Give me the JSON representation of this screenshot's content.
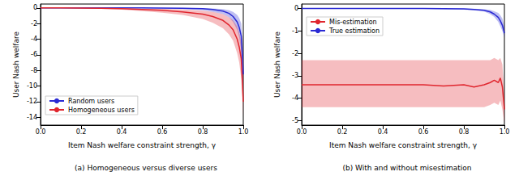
{
  "chart_data": [
    {
      "type": "line",
      "title": "(a) Homogeneous versus diverse users",
      "x_label": "Item Nash welfare constraint strength, γ",
      "y_label": "User Nash welfare",
      "x": [
        0,
        0.1,
        0.2,
        0.3,
        0.4,
        0.5,
        0.6,
        0.7,
        0.8,
        0.85,
        0.9,
        0.93,
        0.95,
        0.97,
        0.98,
        0.99,
        1.0
      ],
      "series": [
        {
          "name": "Random users",
          "color": "#2a2ad4",
          "values": [
            0,
            0,
            0,
            0,
            0,
            0,
            -0.02,
            -0.05,
            -0.1,
            -0.2,
            -0.4,
            -0.7,
            -1.1,
            -1.8,
            -2.5,
            -3.6,
            -8.5
          ],
          "lower": [
            0,
            0,
            0,
            0,
            -0.02,
            -0.05,
            -0.1,
            -0.15,
            -0.3,
            -0.5,
            -0.8,
            -1.2,
            -1.8,
            -2.8,
            -3.8,
            -5.5,
            -11
          ],
          "upper": [
            0,
            0,
            0,
            0,
            0,
            0,
            0,
            0,
            -0.03,
            -0.06,
            -0.15,
            -0.3,
            -0.5,
            -0.9,
            -1.3,
            -2.0,
            -6
          ]
        },
        {
          "name": "Homogeneous users",
          "color": "#e0262e",
          "values": [
            0,
            0,
            -0.02,
            -0.05,
            -0.1,
            -0.2,
            -0.3,
            -0.5,
            -0.8,
            -1.1,
            -1.6,
            -2.2,
            -2.8,
            -4.0,
            -5.0,
            -6.5,
            -12
          ],
          "lower": [
            0,
            -0.02,
            -0.06,
            -0.12,
            -0.22,
            -0.4,
            -0.6,
            -0.9,
            -1.4,
            -1.9,
            -2.6,
            -3.4,
            -4.2,
            -5.8,
            -7.0,
            -9.0,
            -14
          ],
          "upper": [
            0,
            0,
            0,
            -0.01,
            -0.03,
            -0.07,
            -0.12,
            -0.2,
            -0.35,
            -0.5,
            -0.8,
            -1.2,
            -1.6,
            -2.4,
            -3.2,
            -4.3,
            -9
          ]
        }
      ],
      "xlim": [
        0,
        1.0
      ],
      "xticks": [
        {
          "value": 0,
          "label": "0.0"
        },
        0.2,
        0.4,
        0.6,
        0.8,
        {
          "value": 1.0,
          "label": "1.0"
        }
      ],
      "ylim": [
        -15,
        0.5
      ],
      "yticks": [
        0,
        -2,
        -4,
        -6,
        -8,
        -10,
        -12,
        -14
      ],
      "legend": "lower left",
      "grid": false
    },
    {
      "type": "line",
      "title": "(b) With and without misestimation",
      "x_label": "Item Nash welfare constraint strength, γ",
      "y_label": "User Nash welfare",
      "x": [
        0,
        0.1,
        0.2,
        0.3,
        0.4,
        0.5,
        0.6,
        0.7,
        0.8,
        0.85,
        0.9,
        0.93,
        0.95,
        0.97,
        0.98,
        0.99,
        1.0
      ],
      "series": [
        {
          "name": "Mis-estimation",
          "color": "#e0262e",
          "values": [
            -3.4,
            -3.4,
            -3.4,
            -3.4,
            -3.4,
            -3.4,
            -3.4,
            -3.45,
            -3.4,
            -3.5,
            -3.4,
            -3.3,
            -3.2,
            -3.3,
            -3.1,
            -3.5,
            -4.5
          ],
          "lower": [
            -4.4,
            -4.4,
            -4.4,
            -4.4,
            -4.4,
            -4.4,
            -4.4,
            -4.4,
            -4.4,
            -4.4,
            -4.4,
            -4.3,
            -4.2,
            -4.3,
            -4.1,
            -4.5,
            -5.1
          ],
          "upper": [
            -2.3,
            -2.3,
            -2.3,
            -2.3,
            -2.3,
            -2.3,
            -2.3,
            -2.3,
            -2.3,
            -2.3,
            -2.3,
            -2.3,
            -2.2,
            -2.3,
            -2.2,
            -2.5,
            -3.9
          ]
        },
        {
          "name": "True estimation",
          "color": "#2a2ad4",
          "values": [
            0,
            0,
            0,
            0,
            0,
            0,
            0,
            -0.01,
            -0.02,
            -0.04,
            -0.08,
            -0.15,
            -0.25,
            -0.4,
            -0.55,
            -0.75,
            -1.1
          ],
          "lower": [
            -0.01,
            -0.01,
            -0.01,
            -0.01,
            -0.01,
            -0.01,
            -0.02,
            -0.03,
            -0.05,
            -0.08,
            -0.13,
            -0.25,
            -0.38,
            -0.6,
            -0.8,
            -1.0,
            -1.3
          ],
          "upper": [
            0,
            0,
            0,
            0,
            0,
            0,
            0,
            0,
            0,
            -0.01,
            -0.03,
            -0.06,
            -0.12,
            -0.2,
            -0.3,
            -0.45,
            -0.8
          ]
        }
      ],
      "xlim": [
        0,
        1.0
      ],
      "xticks": [
        {
          "value": 0,
          "label": "0.0"
        },
        0.2,
        0.4,
        0.6,
        0.8,
        {
          "value": 1.0,
          "label": "1.0"
        }
      ],
      "ylim": [
        -5.2,
        0.2
      ],
      "yticks": [
        0,
        -1,
        -2,
        -3,
        -4,
        -5
      ],
      "legend": "upper left",
      "grid": false
    }
  ]
}
